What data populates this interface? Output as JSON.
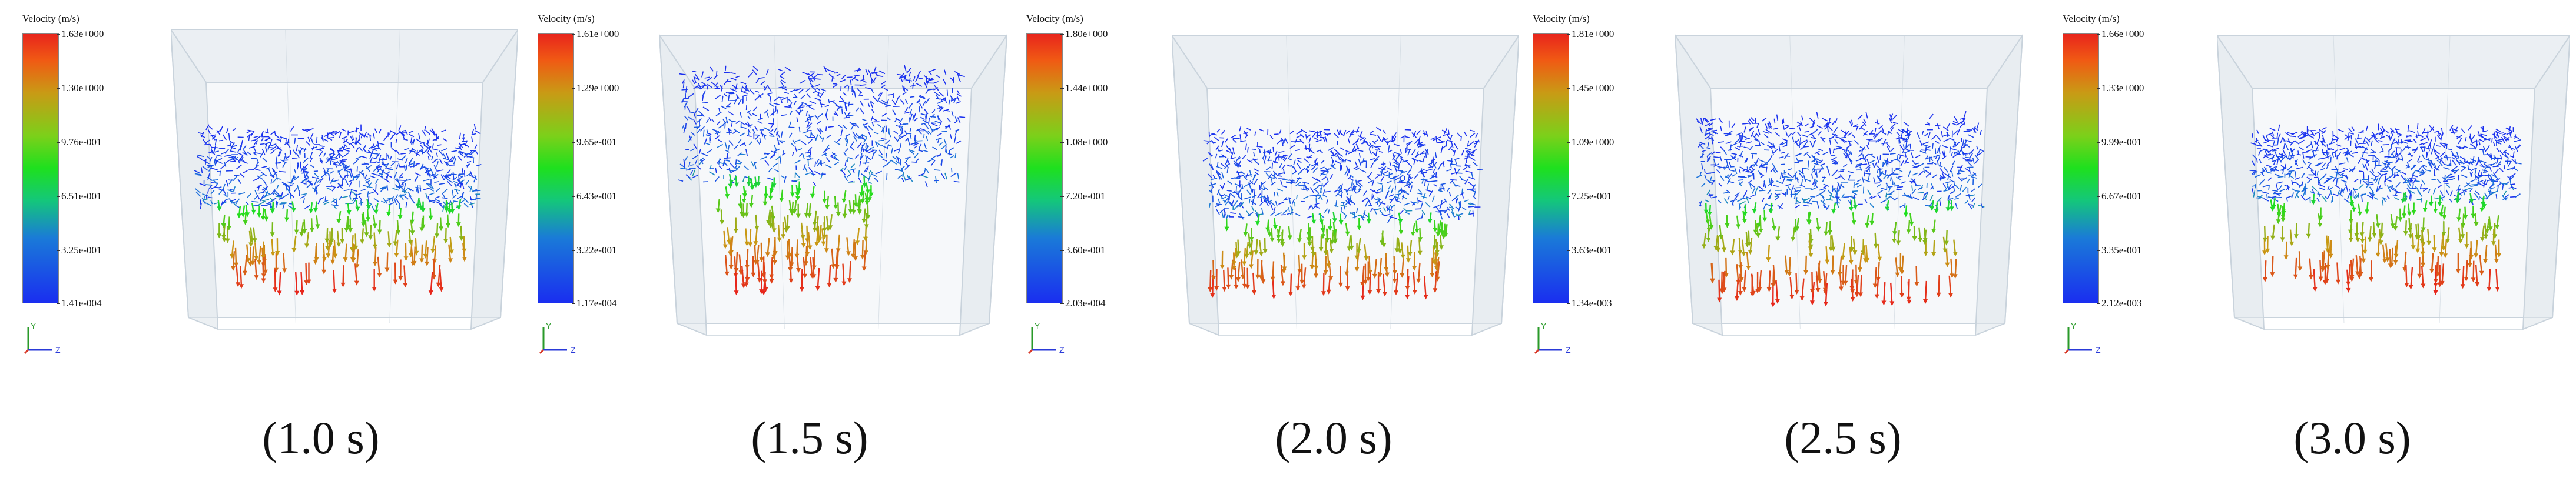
{
  "colors": {
    "high": "#e8241c",
    "mid_high": "#c99a15",
    "mid": "#1ee01e",
    "mid_low": "#1a7ad8",
    "low": "#1a2ef0",
    "container": "#c9d3dc"
  },
  "axis_labels": {
    "y": "Y",
    "z": "Z"
  },
  "panels": [
    {
      "caption": "(1.0 s)",
      "colorbar": {
        "title": "Velocity (m/s)",
        "ticks": [
          "1.63e+000",
          "1.30e+000",
          "9.76e-001",
          "6.51e-001",
          "3.25e-001",
          "1.41e-004"
        ]
      }
    },
    {
      "caption": "(1.5 s)",
      "colorbar": {
        "title": "Velocity (m/s)",
        "ticks": [
          "1.61e+000",
          "1.29e+000",
          "9.65e-001",
          "6.43e-001",
          "3.22e-001",
          "1.17e-004"
        ]
      }
    },
    {
      "caption": "(2.0 s)",
      "colorbar": {
        "title": "Velocity (m/s)",
        "ticks": [
          "1.80e+000",
          "1.44e+000",
          "1.08e+000",
          "7.20e-001",
          "3.60e-001",
          "2.03e-004"
        ]
      }
    },
    {
      "caption": "(2.5 s)",
      "colorbar": {
        "title": "Velocity (m/s)",
        "ticks": [
          "1.81e+000",
          "1.45e+000",
          "1.09e+000",
          "7.25e-001",
          "3.63e-001",
          "1.34e-003"
        ]
      }
    },
    {
      "caption": "(3.0 s)",
      "colorbar": {
        "title": "Velocity (m/s)",
        "ticks": [
          "1.66e+000",
          "1.33e+000",
          "9.99e-001",
          "6.67e-001",
          "3.35e-001",
          "2.12e-003"
        ]
      }
    }
  ]
}
